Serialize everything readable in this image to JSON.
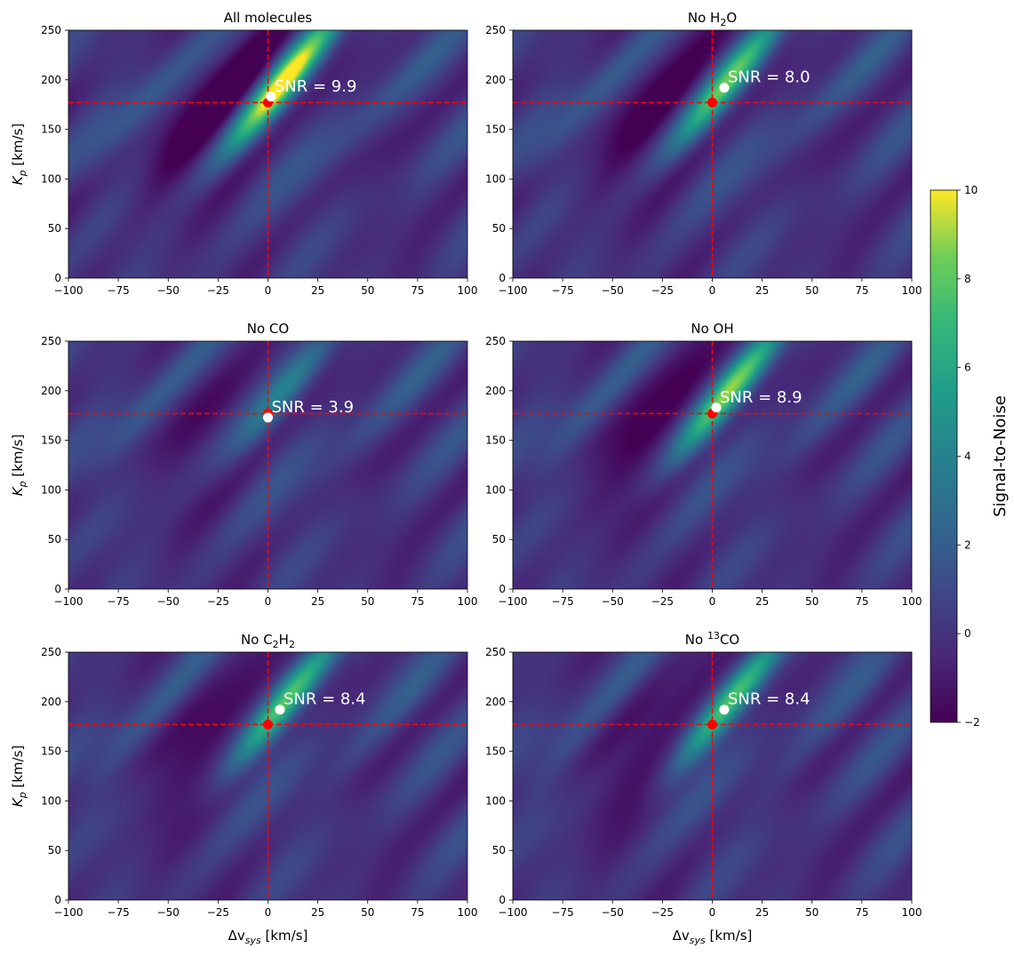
{
  "figure": {
    "colorbar": {
      "label": "Signal-to-Noise",
      "range": [
        -2,
        10
      ],
      "ticks": [
        -2,
        0,
        2,
        4,
        6,
        8,
        10
      ],
      "colormap": "viridis"
    },
    "axis_labels": {
      "y_main": "K",
      "y_sub": "p",
      "y_unit": " [km/s]",
      "x_prefix": "Δv",
      "x_sub": "sys",
      "x_unit": " [km/s]"
    },
    "marker_colors": {
      "expected": "#ff0000",
      "peak": "#ffffff",
      "crosshair": "#ff0000"
    }
  },
  "chart_data": [
    {
      "type": "heatmap",
      "title_main": "All molecules",
      "title_sub": "",
      "title_sup": "",
      "title_after": "",
      "xlim": [
        -100,
        100
      ],
      "ylim": [
        0,
        250
      ],
      "x_ticks": [
        -100,
        -75,
        -50,
        -25,
        0,
        25,
        50,
        75,
        100
      ],
      "y_ticks": [
        0,
        50,
        100,
        150,
        200,
        250
      ],
      "expected": {
        "x": 0,
        "y": 177
      },
      "peak": {
        "x": 1.5,
        "y": 183
      },
      "snr_label": "SNR = 9.9",
      "peak_snr": 9.9,
      "peak_strength": 1.0,
      "grid": false
    },
    {
      "type": "heatmap",
      "title_main": "No H",
      "title_sub": "2",
      "title_sup": "",
      "title_after": "O",
      "xlim": [
        -100,
        100
      ],
      "ylim": [
        0,
        250
      ],
      "x_ticks": [
        -100,
        -75,
        -50,
        -25,
        0,
        25,
        50,
        75,
        100
      ],
      "y_ticks": [
        0,
        50,
        100,
        150,
        200,
        250
      ],
      "expected": {
        "x": 0,
        "y": 177
      },
      "peak": {
        "x": 6,
        "y": 192
      },
      "snr_label": "SNR = 8.0",
      "peak_snr": 8.0,
      "peak_strength": 0.75,
      "grid": false
    },
    {
      "type": "heatmap",
      "title_main": "No CO",
      "title_sub": "",
      "title_sup": "",
      "title_after": "",
      "xlim": [
        -100,
        100
      ],
      "ylim": [
        0,
        250
      ],
      "x_ticks": [
        -100,
        -75,
        -50,
        -25,
        0,
        25,
        50,
        75,
        100
      ],
      "y_ticks": [
        0,
        50,
        100,
        150,
        200,
        250
      ],
      "expected": {
        "x": 0,
        "y": 177
      },
      "peak": {
        "x": 0,
        "y": 173
      },
      "snr_label": "SNR = 3.9",
      "peak_snr": 3.9,
      "peak_strength": 0.35,
      "grid": false
    },
    {
      "type": "heatmap",
      "title_main": "No OH",
      "title_sub": "",
      "title_sup": "",
      "title_after": "",
      "xlim": [
        -100,
        100
      ],
      "ylim": [
        0,
        250
      ],
      "x_ticks": [
        -100,
        -75,
        -50,
        -25,
        0,
        25,
        50,
        75,
        100
      ],
      "y_ticks": [
        0,
        50,
        100,
        150,
        200,
        250
      ],
      "expected": {
        "x": 0,
        "y": 177
      },
      "peak": {
        "x": 2,
        "y": 183
      },
      "snr_label": "SNR = 8.9",
      "peak_snr": 8.9,
      "peak_strength": 0.88,
      "grid": false
    },
    {
      "type": "heatmap",
      "title_main": "No C",
      "title_sub": "2",
      "title_sup": "",
      "title_after": "H",
      "title_sub2": "2",
      "xlim": [
        -100,
        100
      ],
      "ylim": [
        0,
        250
      ],
      "x_ticks": [
        -100,
        -75,
        -50,
        -25,
        0,
        25,
        50,
        75,
        100
      ],
      "y_ticks": [
        0,
        50,
        100,
        150,
        200,
        250
      ],
      "expected": {
        "x": 0,
        "y": 177
      },
      "peak": {
        "x": 6,
        "y": 192
      },
      "snr_label": "SNR = 8.4",
      "peak_snr": 8.4,
      "peak_strength": 0.8,
      "grid": false
    },
    {
      "type": "heatmap",
      "title_main": "No ",
      "title_sub": "",
      "title_sup": "13",
      "title_after": "CO",
      "xlim": [
        -100,
        100
      ],
      "ylim": [
        0,
        250
      ],
      "x_ticks": [
        -100,
        -75,
        -50,
        -25,
        0,
        25,
        50,
        75,
        100
      ],
      "y_ticks": [
        0,
        50,
        100,
        150,
        200,
        250
      ],
      "expected": {
        "x": 0,
        "y": 177
      },
      "peak": {
        "x": 6,
        "y": 192
      },
      "snr_label": "SNR = 8.4",
      "peak_snr": 8.4,
      "peak_strength": 0.8,
      "grid": false
    }
  ]
}
